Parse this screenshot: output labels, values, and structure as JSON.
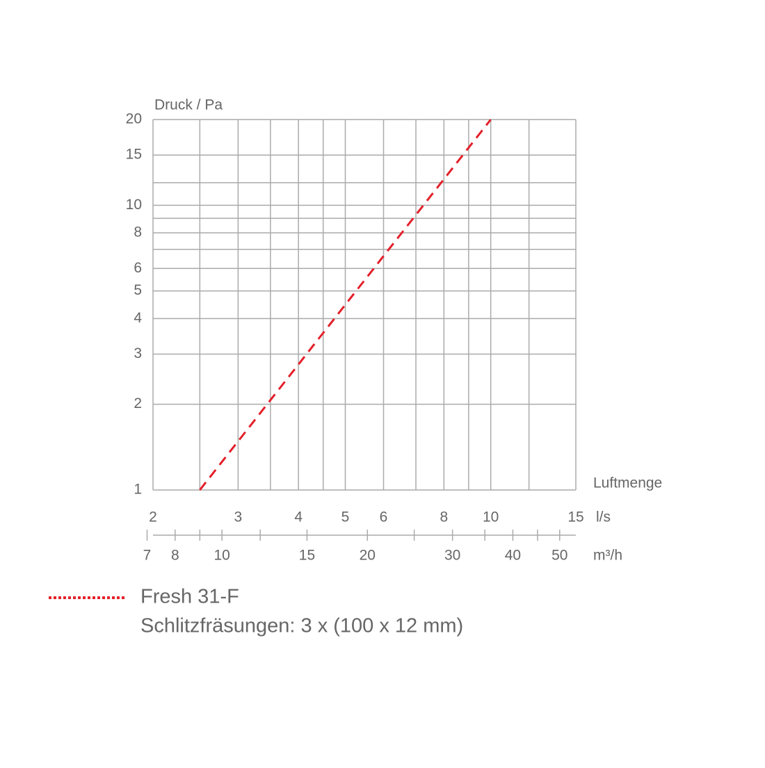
{
  "chart_data": {
    "type": "line",
    "y_label": "Druck / Pa",
    "x_label": "Luftmenge",
    "x_unit": "l/s",
    "x2_unit": "m³/h",
    "xscale": "log",
    "yscale": "log",
    "xlim": [
      2,
      15
    ],
    "xticks": [
      2,
      3,
      4,
      5,
      6,
      8,
      10,
      15
    ],
    "xminor": [
      2.5,
      3.5,
      4.5,
      7,
      9,
      12
    ],
    "ylim": [
      1,
      20
    ],
    "yticks": [
      1,
      2,
      3,
      4,
      5,
      6,
      8,
      10,
      15,
      20
    ],
    "yminor": [
      7,
      9,
      12
    ],
    "x2lim": [
      7.2,
      54
    ],
    "x2ticks": [
      7,
      8,
      10,
      15,
      20,
      30,
      40,
      50
    ],
    "x2minor": [
      9,
      12,
      25,
      35,
      45
    ],
    "grid": true,
    "series": [
      {
        "name": "Fresh 31-F",
        "description": "Schlitzfräsungen: 3 x (100 x 12 mm)",
        "color": "#e3202a",
        "x": [
          2.5,
          10
        ],
        "values": [
          1,
          20
        ]
      }
    ]
  }
}
